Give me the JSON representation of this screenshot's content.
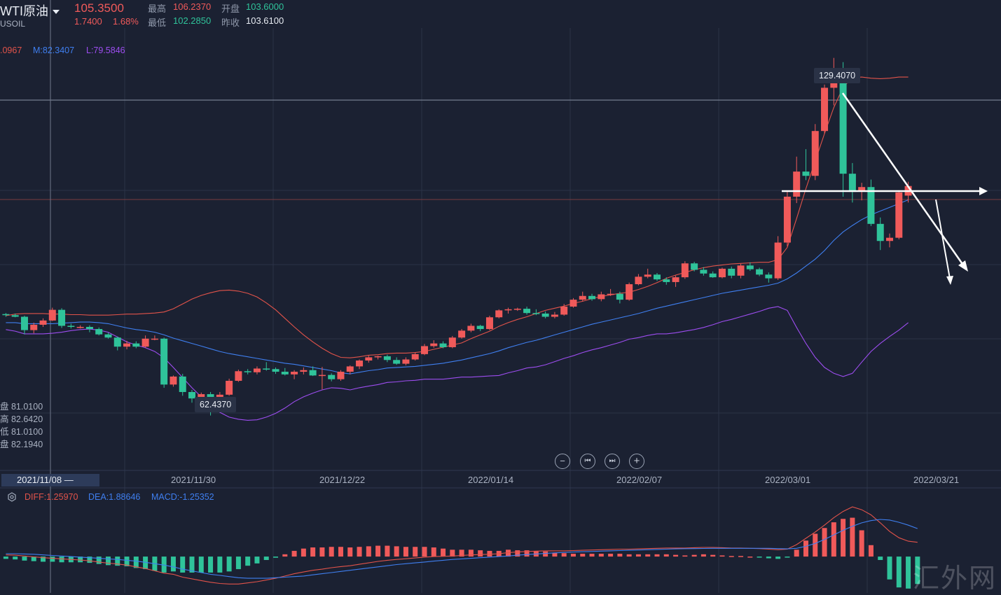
{
  "header": {
    "instrument_name": "WTI原油",
    "symbol": "USOIL",
    "last_price": "105.3500",
    "change": "1.7400",
    "change_pct": "1.68%",
    "high_label": "最高",
    "high_value": "106.2370",
    "open_label": "开盘",
    "open_value": "103.6000",
    "low_label": "最低",
    "low_value": "102.2850",
    "prev_close_label": "昨收",
    "prev_close_value": "103.6100"
  },
  "bollinger": {
    "upper": ".0967",
    "middle": "M:82.3407",
    "lower": "L:79.5846"
  },
  "side_values": [
    "盘 81.0100",
    "高 82.6420",
    "低 81.0100",
    "盘 82.1940"
  ],
  "markers": {
    "peak": "129.4070",
    "trough": "62.4370"
  },
  "nav": {
    "zoom_out": "−",
    "to_start": "⏮",
    "to_end": "⏭",
    "zoom_in": "+"
  },
  "x_axis": {
    "current": "2021/11/08 —",
    "labels": [
      "2021/11/30",
      "2021/12/22",
      "2022/01/14",
      "2022/02/07",
      "2022/03/01",
      "2022/03/21"
    ]
  },
  "macd": {
    "diff": "DIFF:1.25970",
    "dea": "DEA:1.88646",
    "macd": "MACD:-1.25352"
  },
  "watermark": "汇外网",
  "colors": {
    "up": "#f05a5a",
    "down": "#2fc39a",
    "boll_upper": "#e2534a",
    "boll_mid": "#3f7ff0",
    "boll_lower": "#9d4df0",
    "background": "#1b2132"
  },
  "chart_data": {
    "type": "candlestick",
    "y_range": [
      55,
      135
    ],
    "candles": [
      [
        81.4,
        81.6,
        80.9,
        81.2
      ],
      [
        81.2,
        81.5,
        80.8,
        80.9
      ],
      [
        80.9,
        81.1,
        77.6,
        78.4
      ],
      [
        78.4,
        79.8,
        77.8,
        79.4
      ],
      [
        79.4,
        80.6,
        79.0,
        80.2
      ],
      [
        80.2,
        82.6,
        80.1,
        82.2
      ],
      [
        82.2,
        82.5,
        78.8,
        79.2
      ],
      [
        79.2,
        79.6,
        78.7,
        79.0
      ],
      [
        79.0,
        79.3,
        78.7,
        79.0
      ],
      [
        79.0,
        79.3,
        78.0,
        78.6
      ],
      [
        78.6,
        78.9,
        77.4,
        77.6
      ],
      [
        77.6,
        77.9,
        76.8,
        77.0
      ],
      [
        77.0,
        77.2,
        74.6,
        75.3
      ],
      [
        75.3,
        76.4,
        74.8,
        75.9
      ],
      [
        75.9,
        76.3,
        75.0,
        75.3
      ],
      [
        75.3,
        77.4,
        75.1,
        76.8
      ],
      [
        76.8,
        77.4,
        76.5,
        76.8
      ],
      [
        76.8,
        77.0,
        67.6,
        68.2
      ],
      [
        68.2,
        69.9,
        67.8,
        69.7
      ],
      [
        69.7,
        70.2,
        66.1,
        66.8
      ],
      [
        66.8,
        67.2,
        64.8,
        65.6
      ],
      [
        65.6,
        66.7,
        64.7,
        66.4
      ],
      [
        66.4,
        66.8,
        62.4,
        65.6
      ],
      [
        65.6,
        66.8,
        65.4,
        66.3
      ],
      [
        66.3,
        69.3,
        66.1,
        68.9
      ],
      [
        68.9,
        71.0,
        68.7,
        70.7
      ],
      [
        70.7,
        71.1,
        70.1,
        70.5
      ],
      [
        70.5,
        71.6,
        70.1,
        71.2
      ],
      [
        71.2,
        72.4,
        70.8,
        71.1
      ],
      [
        71.1,
        71.4,
        70.2,
        70.6
      ],
      [
        70.6,
        71.3,
        69.9,
        70.1
      ],
      [
        70.1,
        70.9,
        69.2,
        70.6
      ],
      [
        70.6,
        71.4,
        70.1,
        70.9
      ],
      [
        70.9,
        71.6,
        69.8,
        69.9
      ],
      [
        69.9,
        71.5,
        67.3,
        70.0
      ],
      [
        70.0,
        70.3,
        68.8,
        69.2
      ],
      [
        69.2,
        70.9,
        68.9,
        70.6
      ],
      [
        70.6,
        71.8,
        70.1,
        71.6
      ],
      [
        71.6,
        72.9,
        71.1,
        72.7
      ],
      [
        72.7,
        73.6,
        72.3,
        73.3
      ],
      [
        73.3,
        73.6,
        72.9,
        73.5
      ],
      [
        73.5,
        73.8,
        72.4,
        72.8
      ],
      [
        72.8,
        73.3,
        71.9,
        72.1
      ],
      [
        72.1,
        73.3,
        71.8,
        72.9
      ],
      [
        72.9,
        74.2,
        72.7,
        73.9
      ],
      [
        73.9,
        75.8,
        73.7,
        75.4
      ],
      [
        75.4,
        76.5,
        75.1,
        75.9
      ],
      [
        75.9,
        76.3,
        75.0,
        75.2
      ],
      [
        75.2,
        77.3,
        75.0,
        77.0
      ],
      [
        77.0,
        78.6,
        76.8,
        78.3
      ],
      [
        78.3,
        79.6,
        78.0,
        79.2
      ],
      [
        79.2,
        79.4,
        78.2,
        78.6
      ],
      [
        78.6,
        81.1,
        78.4,
        80.8
      ],
      [
        80.8,
        82.3,
        80.6,
        82.1
      ],
      [
        82.1,
        82.6,
        81.5,
        82.3
      ],
      [
        82.3,
        82.6,
        82.0,
        82.4
      ],
      [
        82.4,
        82.8,
        81.3,
        81.6
      ],
      [
        81.6,
        82.3,
        81.2,
        81.5
      ],
      [
        81.5,
        81.9,
        80.6,
        80.9
      ],
      [
        80.9,
        81.8,
        80.6,
        81.3
      ],
      [
        81.3,
        83.3,
        81.1,
        82.8
      ],
      [
        82.8,
        84.4,
        82.6,
        84.1
      ],
      [
        84.1,
        85.6,
        83.8,
        84.8
      ],
      [
        84.8,
        85.2,
        83.9,
        84.2
      ],
      [
        84.2,
        85.6,
        83.8,
        85.1
      ],
      [
        85.1,
        86.1,
        84.8,
        85.2
      ],
      [
        85.2,
        85.6,
        83.4,
        84.1
      ],
      [
        84.1,
        87.3,
        83.9,
        87.0
      ],
      [
        87.0,
        88.9,
        86.8,
        88.4
      ],
      [
        88.4,
        89.9,
        88.1,
        88.8
      ],
      [
        88.8,
        89.1,
        87.6,
        87.9
      ],
      [
        87.9,
        88.3,
        86.9,
        87.4
      ],
      [
        87.4,
        88.6,
        86.5,
        88.3
      ],
      [
        88.3,
        91.3,
        88.0,
        90.9
      ],
      [
        90.9,
        91.2,
        89.4,
        89.7
      ],
      [
        89.7,
        90.2,
        88.6,
        89.0
      ],
      [
        89.0,
        89.4,
        88.2,
        88.3
      ],
      [
        88.3,
        90.1,
        88.1,
        89.9
      ],
      [
        89.9,
        90.3,
        88.1,
        88.6
      ],
      [
        88.6,
        90.8,
        88.1,
        90.5
      ],
      [
        90.5,
        91.1,
        89.5,
        89.8
      ],
      [
        89.8,
        90.1,
        88.5,
        88.8
      ],
      [
        88.8,
        89.2,
        87.3,
        88.1
      ],
      [
        88.1,
        96.0,
        87.8,
        94.8
      ],
      [
        94.8,
        104.5,
        94.1,
        103.4
      ],
      [
        103.4,
        110.9,
        102.2,
        108.1
      ],
      [
        108.1,
        112.3,
        106.5,
        107.3
      ],
      [
        107.3,
        117.0,
        106.5,
        115.7
      ],
      [
        115.7,
        124.4,
        115.2,
        123.8
      ],
      [
        123.8,
        129.4,
        120.5,
        126.5
      ],
      [
        126.5,
        128.6,
        103.4,
        107.7
      ],
      [
        107.7,
        109.7,
        102.3,
        104.3
      ],
      [
        104.4,
        106.0,
        102.7,
        105.2
      ],
      [
        105.2,
        106.6,
        97.9,
        98.3
      ],
      [
        98.3,
        99.5,
        93.4,
        95.1
      ],
      [
        95.1,
        96.5,
        93.9,
        95.7
      ],
      [
        95.7,
        104.6,
        95.4,
        104.2
      ],
      [
        103.6,
        106.2,
        102.3,
        105.4
      ]
    ],
    "bollinger": {
      "upper": [
        81.1,
        81.4,
        81.5,
        81.5,
        81.5,
        81.4,
        81.4,
        81.3,
        81.3,
        81.2,
        81.2,
        81.2,
        81.3,
        81.4,
        81.4,
        81.5,
        81.6,
        81.8,
        82.4,
        83.3,
        84.2,
        84.9,
        85.4,
        85.8,
        85.9,
        85.7,
        85.3,
        84.6,
        83.5,
        82.2,
        80.6,
        79.0,
        77.5,
        76.2,
        75.0,
        74.0,
        73.3,
        73.2,
        73.4,
        73.7,
        73.8,
        74.0,
        74.1,
        74.1,
        74.2,
        74.4,
        74.8,
        75.2,
        75.6,
        76.0,
        76.8,
        77.5,
        78.2,
        79.1,
        79.8,
        80.4,
        80.9,
        81.5,
        82.1,
        82.5,
        82.9,
        83.4,
        83.8,
        84.3,
        84.7,
        85.0,
        85.3,
        85.5,
        86.0,
        86.6,
        87.3,
        88.1,
        88.7,
        89.2,
        89.7,
        90.1,
        90.4,
        90.6,
        90.8,
        90.9,
        91.0,
        91.1,
        91.1,
        91.6,
        93.9,
        99.3,
        104.9,
        110.1,
        115.2,
        120.1,
        123.9,
        125.7,
        125.8,
        125.6,
        125.5,
        125.6,
        125.8,
        125.8
      ],
      "middle": [
        79.8,
        79.8,
        79.6,
        79.6,
        79.6,
        79.6,
        79.7,
        79.8,
        79.9,
        79.9,
        79.8,
        79.6,
        79.2,
        78.8,
        78.5,
        78.3,
        78.0,
        77.5,
        76.9,
        76.4,
        75.9,
        75.4,
        74.9,
        74.4,
        74.0,
        73.7,
        73.4,
        73.1,
        72.8,
        72.5,
        72.2,
        72.0,
        71.7,
        71.4,
        71.1,
        70.8,
        70.4,
        70.2,
        70.5,
        70.8,
        71.0,
        71.3,
        71.4,
        71.5,
        71.6,
        71.8,
        72.0,
        72.2,
        72.5,
        72.8,
        73.2,
        73.6,
        74.0,
        74.5,
        75.1,
        75.6,
        76.1,
        76.5,
        77.0,
        77.5,
        78.0,
        78.5,
        79.0,
        79.5,
        79.9,
        80.3,
        80.7,
        81.1,
        81.5,
        82.0,
        82.5,
        82.9,
        83.3,
        83.7,
        84.1,
        84.5,
        84.9,
        85.3,
        85.6,
        85.9,
        86.2,
        86.5,
        86.8,
        87.2,
        88.0,
        89.1,
        90.4,
        91.7,
        93.3,
        95.2,
        96.8,
        98.0,
        99.1,
        100.0,
        100.7,
        101.4,
        102.1,
        102.8
      ],
      "lower": [
        78.5,
        78.2,
        77.7,
        77.7,
        77.7,
        77.8,
        78.0,
        78.3,
        78.5,
        78.6,
        78.4,
        78.0,
        77.1,
        76.2,
        75.6,
        75.1,
        74.4,
        73.2,
        71.4,
        69.5,
        67.6,
        65.9,
        64.4,
        63.0,
        62.1,
        61.7,
        61.5,
        61.6,
        62.1,
        62.8,
        63.8,
        65.0,
        65.9,
        66.6,
        67.2,
        67.6,
        67.5,
        67.2,
        67.6,
        67.9,
        68.2,
        68.6,
        68.7,
        68.9,
        69.0,
        69.2,
        69.2,
        69.2,
        69.4,
        69.6,
        69.6,
        69.7,
        69.8,
        69.9,
        70.4,
        70.8,
        71.3,
        71.5,
        71.9,
        72.5,
        73.1,
        73.6,
        74.2,
        74.7,
        75.1,
        75.6,
        76.1,
        76.7,
        77.0,
        77.4,
        77.7,
        77.7,
        77.9,
        78.2,
        78.5,
        78.9,
        79.4,
        80.0,
        80.4,
        80.9,
        81.4,
        81.9,
        82.5,
        82.8,
        82.1,
        78.9,
        75.9,
        73.3,
        71.4,
        70.3,
        69.7,
        70.3,
        72.4,
        74.4,
        75.9,
        77.2,
        78.4,
        79.8
      ]
    },
    "macd": {
      "range": [
        -5.5,
        9.2
      ],
      "diff": [
        0.3,
        0.25,
        0.1,
        -0.05,
        -0.2,
        -0.3,
        -0.4,
        -0.5,
        -0.6,
        -0.75,
        -0.95,
        -1.15,
        -1.3,
        -1.5,
        -1.8,
        -2.1,
        -2.5,
        -2.9,
        -3.1,
        -3.6,
        -3.9,
        -4.2,
        -4.5,
        -4.7,
        -4.8,
        -4.8,
        -4.6,
        -4.4,
        -4.1,
        -3.8,
        -3.4,
        -3.0,
        -2.7,
        -2.4,
        -2.2,
        -1.95,
        -1.75,
        -1.6,
        -1.35,
        -1.1,
        -0.85,
        -0.65,
        -0.5,
        -0.38,
        -0.25,
        -0.1,
        0.0,
        0.05,
        0.1,
        0.2,
        0.3,
        0.35,
        0.4,
        0.5,
        0.7,
        0.8,
        0.9,
        0.95,
        1.0,
        1.0,
        1.0,
        1.05,
        1.1,
        1.15,
        1.2,
        1.25,
        1.3,
        1.3,
        1.35,
        1.4,
        1.45,
        1.5,
        1.5,
        1.5,
        1.55,
        1.6,
        1.6,
        1.55,
        1.5,
        1.5,
        1.45,
        1.4,
        1.3,
        1.2,
        1.3,
        2.1,
        3.2,
        4.3,
        5.5,
        6.8,
        7.9,
        8.7,
        8.2,
        7.3,
        5.9,
        4.4,
        3.3,
        2.7,
        2.5
      ],
      "dea": [
        0.5,
        0.5,
        0.45,
        0.4,
        0.3,
        0.2,
        0.1,
        0.0,
        -0.1,
        -0.2,
        -0.3,
        -0.4,
        -0.5,
        -0.65,
        -0.8,
        -1.0,
        -1.25,
        -1.5,
        -1.8,
        -2.2,
        -2.5,
        -2.8,
        -3.1,
        -3.3,
        -3.5,
        -3.7,
        -3.8,
        -3.8,
        -3.8,
        -3.7,
        -3.6,
        -3.5,
        -3.4,
        -3.2,
        -3.0,
        -2.8,
        -2.6,
        -2.4,
        -2.2,
        -2.0,
        -1.8,
        -1.6,
        -1.4,
        -1.25,
        -1.1,
        -0.95,
        -0.8,
        -0.65,
        -0.5,
        -0.4,
        -0.3,
        -0.2,
        -0.1,
        0.0,
        0.1,
        0.25,
        0.35,
        0.45,
        0.55,
        0.65,
        0.72,
        0.8,
        0.85,
        0.9,
        0.95,
        1.0,
        1.05,
        1.1,
        1.15,
        1.2,
        1.25,
        1.3,
        1.35,
        1.38,
        1.4,
        1.42,
        1.44,
        1.45,
        1.45,
        1.45,
        1.45,
        1.45,
        1.44,
        1.4,
        1.35,
        1.45,
        1.8,
        2.3,
        3.0,
        3.8,
        4.6,
        5.3,
        5.9,
        6.3,
        6.5,
        6.4,
        6.0,
        5.5,
        4.9
      ],
      "hist": [
        -0.4,
        -0.5,
        -0.7,
        -0.8,
        -0.9,
        -0.9,
        -1.0,
        -1.0,
        -1.0,
        -1.1,
        -1.3,
        -1.5,
        -1.6,
        -1.7,
        -2.0,
        -2.2,
        -2.5,
        -2.8,
        -2.6,
        -2.8,
        -2.8,
        -2.8,
        -2.8,
        -2.8,
        -2.6,
        -2.2,
        -1.6,
        -1.2,
        -0.6,
        -0.2,
        0.4,
        1.0,
        1.4,
        1.6,
        1.6,
        1.7,
        1.7,
        1.6,
        1.7,
        1.8,
        1.9,
        1.9,
        1.8,
        1.7,
        1.7,
        1.7,
        1.6,
        1.4,
        1.2,
        1.2,
        1.2,
        1.1,
        1.0,
        1.0,
        1.2,
        1.1,
        1.1,
        1.0,
        0.9,
        0.7,
        0.6,
        0.5,
        0.5,
        0.5,
        0.5,
        0.5,
        0.5,
        0.4,
        0.4,
        0.4,
        0.4,
        0.4,
        0.3,
        0.2,
        0.3,
        0.4,
        0.3,
        0.2,
        0.1,
        0.1,
        0.0,
        -0.1,
        -0.3,
        -0.4,
        -0.1,
        1.2,
        2.8,
        4.0,
        5.0,
        6.0,
        6.6,
        6.8,
        4.6,
        2.0,
        -0.6,
        -4.0,
        -5.4,
        -5.6,
        -4.8
      ]
    }
  }
}
